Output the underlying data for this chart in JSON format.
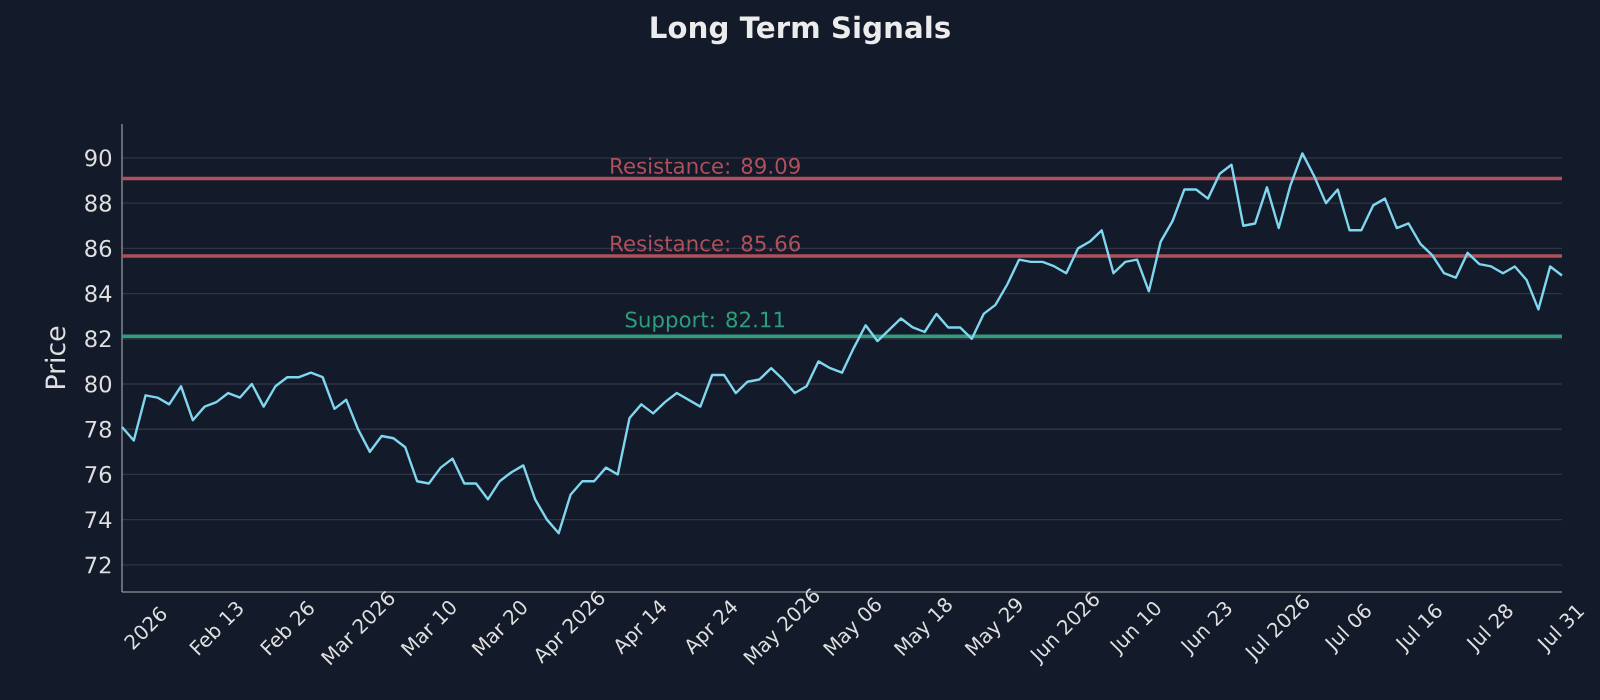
{
  "chart_data": {
    "type": "line",
    "title": "Long Term Signals",
    "ylabel": "Price",
    "categories": [
      null,
      null,
      "2026",
      null,
      null,
      null,
      null,
      null,
      "Feb 13",
      null,
      null,
      null,
      null,
      null,
      "Feb 26",
      null,
      null,
      null,
      null,
      null,
      "Mar 2026",
      null,
      null,
      null,
      null,
      null,
      "Mar 10",
      null,
      null,
      null,
      null,
      null,
      "Mar 20",
      null,
      null,
      null,
      null,
      null,
      "Apr 2026",
      null,
      null,
      null,
      null,
      null,
      "Apr 14",
      null,
      null,
      null,
      null,
      null,
      "Apr 24",
      null,
      null,
      null,
      null,
      null,
      "May 2026",
      null,
      null,
      null,
      null,
      null,
      "May 06",
      null,
      null,
      null,
      null,
      null,
      "May 18",
      null,
      null,
      null,
      null,
      null,
      "May 29",
      null,
      null,
      null,
      null,
      null,
      "Jun 2026",
      null,
      null,
      null,
      null,
      null,
      "Jun 10",
      null,
      null,
      null,
      null,
      null,
      "Jun 23",
      null,
      null,
      null,
      null,
      null,
      "Jul 2026",
      null,
      null,
      null,
      null,
      null,
      "Jul 06",
      null,
      null,
      null,
      null,
      null,
      "Jul 16",
      null,
      null,
      null,
      null,
      null,
      "Jul 28",
      null,
      null,
      null,
      null,
      null,
      "Jul 31"
    ],
    "values": [
      78.1,
      77.5,
      79.5,
      79.4,
      79.1,
      79.9,
      78.4,
      79.0,
      79.2,
      79.6,
      79.4,
      80.0,
      79.0,
      79.9,
      80.3,
      80.3,
      80.5,
      80.3,
      78.9,
      79.3,
      78.0,
      77.0,
      77.7,
      77.6,
      77.2,
      75.7,
      75.6,
      76.3,
      76.7,
      75.6,
      75.6,
      74.9,
      75.7,
      76.1,
      76.4,
      74.9,
      74.0,
      73.4,
      75.1,
      75.7,
      75.7,
      76.3,
      76.0,
      78.5,
      79.1,
      78.7,
      79.2,
      79.6,
      79.3,
      79.0,
      80.4,
      80.4,
      79.6,
      80.1,
      80.2,
      80.7,
      80.2,
      79.6,
      79.9,
      81.0,
      80.7,
      80.5,
      81.6,
      82.6,
      81.9,
      82.4,
      82.9,
      82.5,
      82.3,
      83.1,
      82.5,
      82.5,
      82.0,
      83.1,
      83.5,
      84.4,
      85.5,
      85.4,
      85.4,
      85.2,
      84.9,
      86.0,
      86.3,
      86.8,
      84.9,
      85.4,
      85.5,
      84.1,
      86.3,
      87.2,
      88.6,
      88.6,
      88.2,
      89.3,
      89.7,
      87.0,
      87.1,
      88.7,
      86.9,
      88.8,
      90.2,
      89.2,
      88.0,
      88.6,
      86.8,
      86.8,
      87.9,
      88.2,
      86.9,
      87.1,
      86.2,
      85.7,
      84.9,
      84.7,
      85.8,
      85.3,
      85.2,
      84.9,
      85.2,
      84.6,
      83.3,
      85.2,
      84.8
    ],
    "color": "#7fd6ee",
    "ylim": [
      70.8,
      91.5
    ],
    "yticks": [
      72,
      74,
      76,
      78,
      80,
      82,
      84,
      86,
      88,
      90
    ],
    "grid": "y",
    "ref_lines": [
      {
        "axis": "y",
        "value": 89.09,
        "label": "Resistance: 89.09",
        "color": "#b0505a"
      },
      {
        "axis": "y",
        "value": 85.66,
        "label": "Resistance: 85.66",
        "color": "#b0505a"
      },
      {
        "axis": "y",
        "value": 82.11,
        "label": "Support: 82.11",
        "color": "#2e9e7a"
      }
    ]
  }
}
